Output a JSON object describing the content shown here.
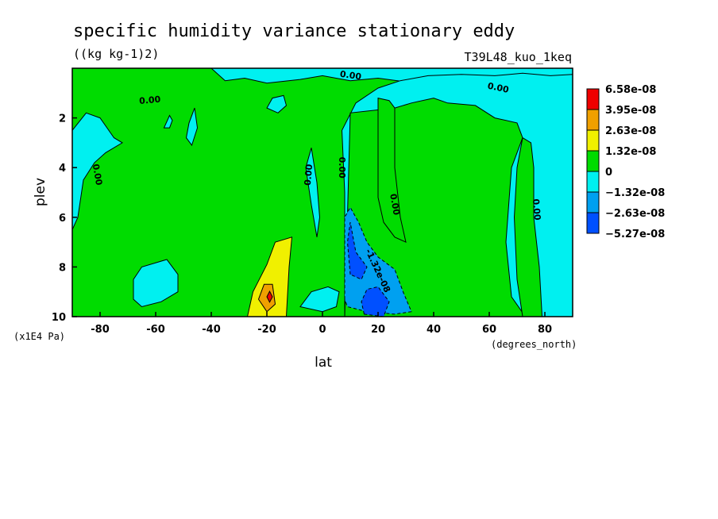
{
  "chart_data": {
    "type": "heatmap",
    "title": "specific humidity variance stationary eddy",
    "units": "((kg kg-1)2)",
    "run_label": "T39L48_kuo_1keq",
    "xlabel": "lat",
    "x_units": "(degrees_north)",
    "ylabel": "plev",
    "y_units": "(x1E4 Pa)",
    "xlim": [
      -90,
      90
    ],
    "ylim": [
      10,
      0
    ],
    "x_ticks": [
      {
        "value": -80,
        "label": "-80"
      },
      {
        "value": -60,
        "label": "-60"
      },
      {
        "value": -40,
        "label": "-40"
      },
      {
        "value": -20,
        "label": "-20"
      },
      {
        "value": 0,
        "label": "0"
      },
      {
        "value": 20,
        "label": "20"
      },
      {
        "value": 40,
        "label": "40"
      },
      {
        "value": 60,
        "label": "60"
      },
      {
        "value": 80,
        "label": "80"
      }
    ],
    "y_ticks": [
      {
        "value": 2,
        "label": "2"
      },
      {
        "value": 4,
        "label": "4"
      },
      {
        "value": 6,
        "label": "6"
      },
      {
        "value": 8,
        "label": "8"
      },
      {
        "value": 10,
        "label": "10"
      }
    ],
    "legend": {
      "placement": "right",
      "levels": [
        "6.58e-08",
        "3.95e-08",
        "2.63e-08",
        "1.32e-08",
        "0",
        "−1.32e-08",
        "−2.63e-08",
        "−5.27e-08"
      ],
      "colors": [
        "#f00000",
        "#f0a000",
        "#f0f000",
        "#00dc00",
        "#00f0f0",
        "#00a0f0",
        "#0050ff"
      ]
    },
    "contour_labels": [
      {
        "text": "0.00",
        "lon": 10,
        "plev": 0.4,
        "rotate": 8
      },
      {
        "text": "0.00",
        "lon": -62,
        "plev": 1.4,
        "rotate": -5
      },
      {
        "text": "0.00",
        "lon": 63,
        "plev": 0.9,
        "rotate": 12
      },
      {
        "text": "0.00",
        "lon": -82,
        "plev": 4.3,
        "rotate": 80
      },
      {
        "text": "0.00",
        "lon": -4,
        "plev": 4.3,
        "rotate": -85
      },
      {
        "text": "0.00",
        "lon": 6,
        "plev": 4.0,
        "rotate": 90
      },
      {
        "text": "0.00",
        "lon": 25,
        "plev": 5.5,
        "rotate": 80
      },
      {
        "text": "0.00",
        "lon": 76,
        "plev": 5.7,
        "rotate": 85
      },
      {
        "text": "-1.32e-08",
        "lon": 19,
        "plev": 8.2,
        "rotate": 65
      }
    ],
    "regions": [
      {
        "level": "0 to 1.32e-08",
        "points": [
          [
            -90,
            10
          ],
          [
            -90,
            0
          ],
          [
            -40,
            0
          ],
          [
            -35,
            0.5
          ],
          [
            -28,
            0.4
          ],
          [
            -20,
            0.6
          ],
          [
            -8,
            0.45
          ],
          [
            0,
            0.3
          ],
          [
            10,
            0.5
          ],
          [
            20,
            0.4
          ],
          [
            30,
            0.55
          ],
          [
            40,
            0.5
          ],
          [
            50,
            0.35
          ],
          [
            60,
            0.4
          ],
          [
            70,
            0.3
          ],
          [
            78,
            0.4
          ],
          [
            84,
            0.45
          ],
          [
            90,
            0.45
          ],
          [
            90,
            10
          ]
        ]
      },
      {
        "level": "-1.32e-08 to 0",
        "points": [
          [
            8,
            10
          ],
          [
            8,
            5
          ],
          [
            7,
            2.5
          ],
          [
            12,
            1.4
          ],
          [
            20,
            0.8
          ],
          [
            28,
            0.5
          ],
          [
            38,
            0.3
          ],
          [
            50,
            0.25
          ],
          [
            62,
            0.3
          ],
          [
            72,
            0.2
          ],
          [
            82,
            0.3
          ],
          [
            90,
            0.25
          ],
          [
            90,
            10
          ],
          [
            73,
            10
          ],
          [
            68,
            9.2
          ],
          [
            66,
            7
          ],
          [
            68,
            4
          ],
          [
            72,
            2.8
          ],
          [
            70,
            2.2
          ],
          [
            62,
            2.0
          ],
          [
            55,
            1.5
          ],
          [
            45,
            1.4
          ],
          [
            40,
            1.2
          ],
          [
            32,
            1.4
          ],
          [
            26,
            1.6
          ],
          [
            10,
            1.8
          ],
          [
            8,
            10
          ]
        ]
      },
      {
        "level": "0 to 1.32e-08",
        "points": [
          [
            20,
            5.2
          ],
          [
            20,
            1.2
          ],
          [
            24,
            1.3
          ],
          [
            26,
            1.6
          ],
          [
            26,
            4
          ],
          [
            27,
            5
          ],
          [
            28,
            6
          ],
          [
            30,
            7
          ],
          [
            26,
            6.8
          ],
          [
            22,
            6.2
          ],
          [
            20,
            5.2
          ]
        ]
      },
      {
        "level": "0 to 1.32e-08",
        "points": [
          [
            72,
            10
          ],
          [
            70,
            8.5
          ],
          [
            69,
            6
          ],
          [
            70,
            4
          ],
          [
            72,
            2.8
          ],
          [
            75,
            3
          ],
          [
            76,
            4
          ],
          [
            76,
            6
          ],
          [
            78,
            8
          ],
          [
            79,
            10
          ]
        ]
      },
      {
        "level": "-1.32e-08 to 0",
        "points": [
          [
            -90,
            2.5
          ],
          [
            -85,
            1.8
          ],
          [
            -80,
            2.0
          ],
          [
            -75,
            2.8
          ],
          [
            -72,
            3.0
          ],
          [
            -78,
            3.4
          ],
          [
            -82,
            3.8
          ],
          [
            -86,
            4.5
          ],
          [
            -88,
            6.0
          ],
          [
            -90,
            6.5
          ]
        ]
      },
      {
        "level": "-1.32e-08 to 0",
        "points": [
          [
            -47,
            3.1
          ],
          [
            -45,
            2.4
          ],
          [
            -46,
            1.6
          ],
          [
            -48,
            2.2
          ],
          [
            -49,
            2.8
          ]
        ]
      },
      {
        "level": "-1.32e-08 to 0",
        "points": [
          [
            -57,
            2.4
          ],
          [
            -55,
            1.9
          ],
          [
            -54,
            2.1
          ],
          [
            -55,
            2.4
          ]
        ]
      },
      {
        "level": "-1.32e-08 to 0",
        "points": [
          [
            -20,
            1.6
          ],
          [
            -18,
            1.2
          ],
          [
            -14,
            1.1
          ],
          [
            -13,
            1.5
          ],
          [
            -16,
            1.8
          ]
        ]
      },
      {
        "level": "-1.32e-08 to 0",
        "points": [
          [
            -68,
            9.3
          ],
          [
            -68,
            8.5
          ],
          [
            -65,
            8.0
          ],
          [
            -56,
            7.7
          ],
          [
            -52,
            8.3
          ],
          [
            -52,
            9.0
          ],
          [
            -58,
            9.4
          ],
          [
            -65,
            9.6
          ]
        ]
      },
      {
        "level": "-1.32e-08 to 0",
        "points": [
          [
            -8,
            9.6
          ],
          [
            -4,
            9.0
          ],
          [
            2,
            8.8
          ],
          [
            6,
            9.0
          ],
          [
            5,
            9.6
          ],
          [
            0,
            9.8
          ]
        ]
      },
      {
        "level": "-1.32e-08 to 0",
        "points": [
          [
            -2,
            6.8
          ],
          [
            -4,
            5.5
          ],
          [
            -6,
            4.0
          ],
          [
            -4,
            3.2
          ],
          [
            -2,
            4.6
          ],
          [
            -1,
            6.0
          ]
        ]
      },
      {
        "level": "1.32e-08 to 2.63e-08",
        "points": [
          [
            -27,
            10
          ],
          [
            -25,
            9
          ],
          [
            -20,
            7.9
          ],
          [
            -17,
            7.0
          ],
          [
            -11,
            6.8
          ],
          [
            -12,
            8.0
          ],
          [
            -13,
            10
          ]
        ]
      },
      {
        "level": "2.63e-08 to 3.95e-08",
        "points": [
          [
            -20,
            9.8
          ],
          [
            -23,
            9.3
          ],
          [
            -21,
            8.7
          ],
          [
            -18,
            8.7
          ],
          [
            -17,
            9.5
          ]
        ]
      },
      {
        "level": "3.95e-08 to 6.58e-08",
        "points": [
          [
            -20,
            9.2
          ],
          [
            -19,
            8.98
          ],
          [
            -18,
            9.2
          ],
          [
            -19,
            9.42
          ]
        ]
      },
      {
        "level": "-2.63e-08 to -1.32e-08",
        "points": [
          [
            8,
            9.3
          ],
          [
            8,
            6.0
          ],
          [
            10,
            5.6
          ],
          [
            13,
            6.2
          ],
          [
            16,
            7.0
          ],
          [
            20,
            7.6
          ],
          [
            26,
            8.1
          ],
          [
            29,
            9.0
          ],
          [
            32,
            9.8
          ],
          [
            26,
            9.9
          ],
          [
            16,
            9.8
          ],
          [
            9,
            9.6
          ]
        ]
      },
      {
        "level": "-5.27e-08 to -2.63e-08",
        "points": [
          [
            10,
            8.3
          ],
          [
            9,
            7.0
          ],
          [
            10,
            6.2
          ],
          [
            12,
            7.4
          ],
          [
            16,
            8.0
          ],
          [
            14,
            8.5
          ]
        ]
      },
      {
        "level": "-5.27e-08 to -2.63e-08",
        "points": [
          [
            15,
            9.9
          ],
          [
            14,
            9.4
          ],
          [
            16,
            8.9
          ],
          [
            20,
            8.8
          ],
          [
            24,
            9.4
          ],
          [
            22,
            10
          ]
        ]
      }
    ]
  }
}
